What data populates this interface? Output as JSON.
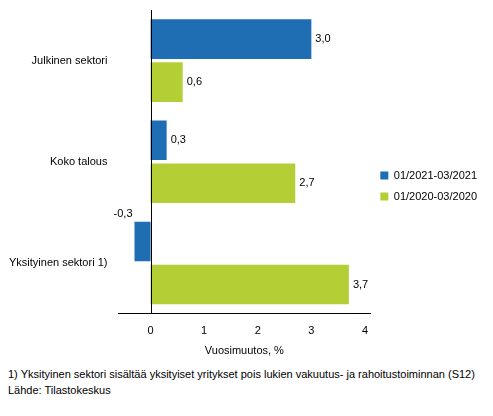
{
  "chart_data": {
    "type": "bar",
    "orientation": "horizontal",
    "categories": [
      "Julkinen sektori",
      "Koko talous",
      "Yksityinen sektori 1)"
    ],
    "series": [
      {
        "name": "01/2021-03/2021",
        "color": "#1f6eb4",
        "values": [
          3.0,
          0.3,
          -0.3
        ],
        "value_labels": [
          "3,0",
          "0,3",
          "-0,3"
        ]
      },
      {
        "name": "01/2020-03/2020",
        "color": "#b4cf36",
        "values": [
          0.6,
          2.7,
          3.7
        ],
        "value_labels": [
          "0,6",
          "2,7",
          "3,7"
        ]
      }
    ],
    "x_label": "Vuosimuutos, %",
    "xlim": [
      -0.6,
      4.1
    ],
    "xticks": [
      0,
      1,
      2,
      3,
      4
    ],
    "grid": false,
    "legend": "right",
    "data_labels": true,
    "annotations": [
      "1) Yksityinen sektori sisältää yksityiset yritykset pois lukien vakuutus- ja rahoitustoiminnan (S12)",
      "Lähde: Tilastokeskus"
    ]
  }
}
